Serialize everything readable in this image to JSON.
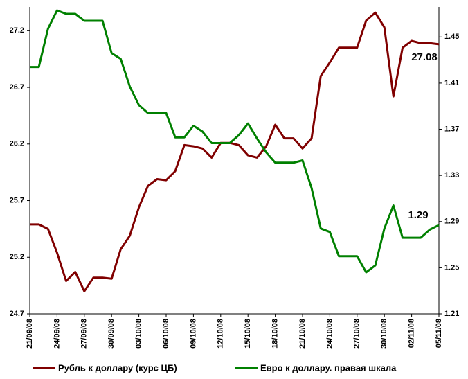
{
  "chart_data": {
    "type": "line",
    "categories": [
      "21/09/08",
      null,
      null,
      "24/09/08",
      null,
      null,
      "27/09/08",
      null,
      null,
      "30/09/08",
      null,
      null,
      "03/10/08",
      null,
      null,
      "06/10/08",
      null,
      null,
      "09/10/08",
      null,
      null,
      "12/10/08",
      null,
      null,
      "15/10/08",
      null,
      null,
      "18/10/08",
      null,
      null,
      "21/10/08",
      null,
      null,
      "24/10/08",
      null,
      null,
      "27/10/08",
      null,
      null,
      "30/10/08",
      null,
      null,
      "02/11/08",
      null,
      null,
      "05/11/08"
    ],
    "series": [
      {
        "name": "Рубль к доллару (курс ЦБ)",
        "color": "#800000",
        "values": [
          25.49,
          25.49,
          25.45,
          25.24,
          24.99,
          25.07,
          24.9,
          25.02,
          25.02,
          25.01,
          25.27,
          25.39,
          25.64,
          25.83,
          25.89,
          25.88,
          25.96,
          26.19,
          26.18,
          26.16,
          26.08,
          26.21,
          26.21,
          26.19,
          26.1,
          26.08,
          26.18,
          26.37,
          26.25,
          26.25,
          26.16,
          26.25,
          26.8,
          26.92,
          27.05,
          27.05,
          27.05,
          27.29,
          27.36,
          27.23,
          26.62,
          27.05,
          27.11,
          27.09,
          27.09,
          27.08
        ]
      },
      {
        "name": "Евро к доллару. правая шкала",
        "color": "#008000",
        "axis": "y2",
        "values": [
          1.424,
          1.424,
          1.457,
          1.473,
          1.47,
          1.47,
          1.464,
          1.464,
          1.464,
          1.436,
          1.431,
          1.407,
          1.391,
          1.384,
          1.384,
          1.384,
          1.363,
          1.363,
          1.373,
          1.368,
          1.358,
          1.358,
          1.358,
          1.365,
          1.375,
          1.362,
          1.35,
          1.341,
          1.341,
          1.341,
          1.343,
          1.319,
          1.284,
          1.281,
          1.26,
          1.26,
          1.26,
          1.246,
          1.252,
          1.284,
          1.304,
          1.276,
          1.276,
          1.276,
          1.283,
          1.287
        ]
      }
    ],
    "ylim": [
      24.7,
      27.41
    ],
    "yticks": [
      {
        "value": 24.7,
        "label": "24.7"
      },
      {
        "value": 25.2,
        "label": "25.2"
      },
      {
        "value": 25.7,
        "label": "25.7"
      },
      {
        "value": 26.2,
        "label": "26.2"
      },
      {
        "value": 26.7,
        "label": "26.7"
      },
      {
        "value": 27.2,
        "label": "27.2"
      }
    ],
    "y2lim": [
      1.21,
      1.476
    ],
    "y2ticks": [
      1.21,
      1.25,
      1.29,
      1.33,
      1.37,
      1.41,
      1.45
    ],
    "annotations": [
      "27.08",
      "1.29"
    ],
    "legend": "bottom"
  }
}
